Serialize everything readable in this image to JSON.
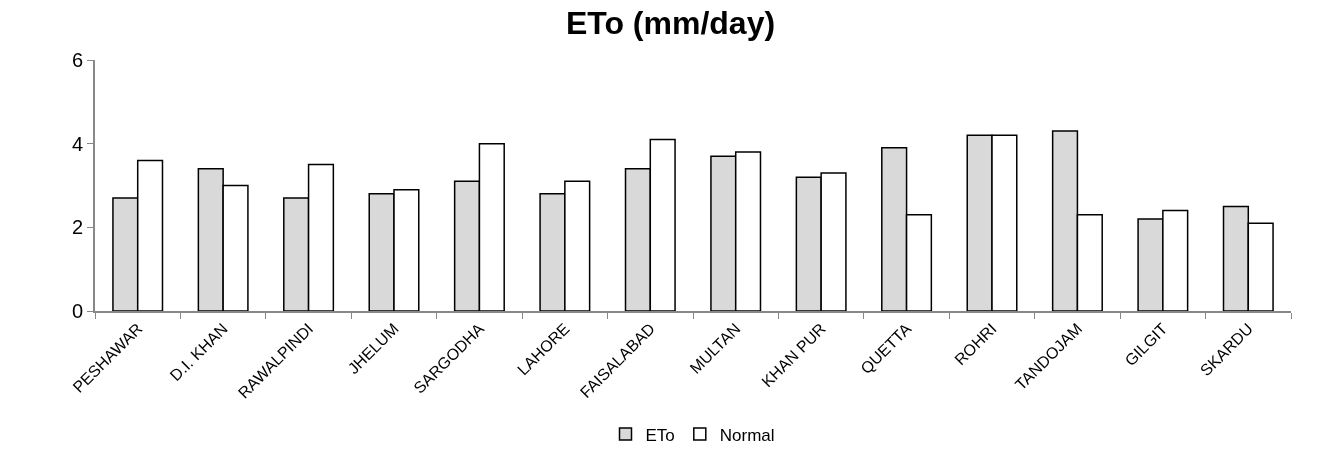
{
  "chart_data": {
    "type": "bar",
    "title": "ETo (mm/day)",
    "categories": [
      "PESHAWAR",
      "D.I. KHAN",
      "RAWALPINDI",
      "JHELUM",
      "SARGODHA",
      "LAHORE",
      "FAISALABAD",
      "MULTAN",
      "KHAN PUR",
      "QUETTA",
      "ROHRI",
      "TANDOJAM",
      "GILGIT",
      "SKARDU"
    ],
    "series": [
      {
        "name": "ETo",
        "color": "#d9d9d9",
        "values": [
          2.7,
          3.4,
          2.7,
          2.8,
          3.1,
          2.8,
          3.4,
          3.7,
          3.2,
          3.9,
          4.2,
          4.3,
          2.2,
          2.5
        ]
      },
      {
        "name": "Normal",
        "color": "#ffffff",
        "values": [
          3.6,
          3.0,
          3.5,
          2.9,
          4.0,
          3.1,
          4.1,
          3.8,
          3.3,
          2.3,
          4.2,
          2.3,
          2.4,
          2.1
        ]
      }
    ],
    "ylim": [
      0,
      6
    ],
    "yticks": [
      0,
      2,
      4,
      6
    ],
    "legend": "bottom"
  }
}
